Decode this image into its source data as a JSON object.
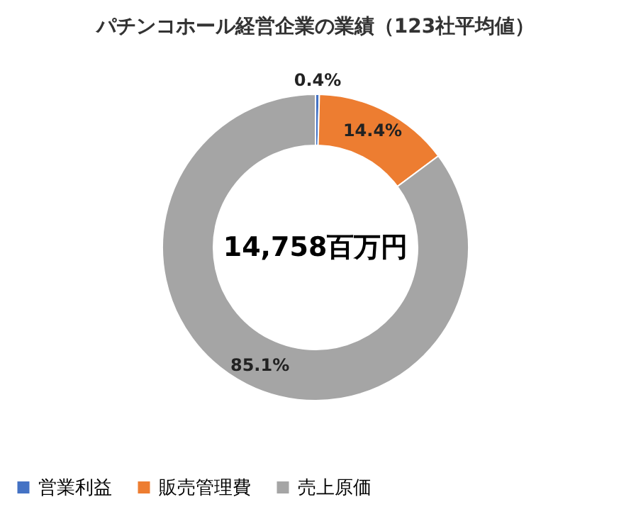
{
  "chart_data": {
    "type": "donut",
    "title": "パチンコホール経営企業の業績（123社平均値）",
    "categories": [
      "営業利益",
      "販売管理費",
      "売上原価"
    ],
    "values": [
      0.4,
      14.4,
      85.1
    ],
    "colors": [
      "#4472c4",
      "#ed7d31",
      "#a5a5a5"
    ],
    "value_labels": [
      "0.4%",
      "14.4%",
      "85.1%"
    ],
    "annotations": [
      "14,758百万円"
    ],
    "legend": "bottom"
  }
}
